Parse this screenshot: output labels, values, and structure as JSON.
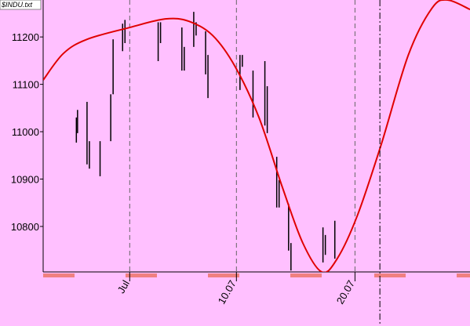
{
  "chart_data": {
    "type": "price-bars",
    "title": "$INDU.txt",
    "xlim": [
      -6.3,
      29.7
    ],
    "ylim": [
      10704,
      11278
    ],
    "yticks": [
      10800,
      10900,
      11000,
      11100,
      11200
    ],
    "xticks": [
      {
        "value": 1,
        "label": "Jul"
      },
      {
        "value": 10,
        "label": "10.07"
      },
      {
        "value": 20,
        "label": "20.07"
      }
    ],
    "grid": true,
    "marker_x": 22.1,
    "bars": {
      "color": "#000000",
      "x": [
        -3.5,
        -3.4,
        -2.6,
        -2.4,
        -1.5,
        -0.6,
        -0.4,
        0.4,
        0.6,
        3.4,
        3.6,
        5.4,
        5.6,
        6.4,
        6.6,
        7.4,
        7.6,
        10.3,
        10.5,
        11.4,
        12.4,
        12.6,
        13.4,
        13.6,
        14.4,
        14.6,
        17.3,
        17.5,
        18.3
      ],
      "high": [
        11030,
        11046,
        11063,
        10980,
        10980,
        11079,
        11195,
        11228,
        11236,
        11231,
        11231,
        11220,
        11179,
        11253,
        11231,
        11212,
        11162,
        11162,
        11162,
        11129,
        11149,
        11096,
        10947,
        10898,
        10848,
        10765,
        10798,
        10782,
        10812
      ],
      "low": [
        10977,
        10997,
        10931,
        10922,
        10906,
        10980,
        11079,
        11170,
        11187,
        11149,
        11187,
        11129,
        11129,
        11179,
        11203,
        11121,
        11071,
        11088,
        11137,
        11030,
        11013,
        10997,
        10840,
        10840,
        10749,
        10707,
        10724,
        10740,
        10732
      ]
    },
    "curve": {
      "color": "#e00000",
      "x": [
        -6.3,
        -4.6,
        -2.6,
        1,
        4,
        6,
        8,
        9.9,
        11.9,
        13.9,
        15.6,
        17.2,
        18.5,
        20.2,
        22.2,
        24.5,
        26.5,
        27.8,
        29.7
      ],
      "values": [
        11109,
        11165,
        11195,
        11220,
        11238,
        11233,
        11203,
        11137,
        11030,
        10881,
        10765,
        10704,
        10732,
        10823,
        10972,
        11162,
        11261,
        11278,
        11258
      ]
    }
  }
}
